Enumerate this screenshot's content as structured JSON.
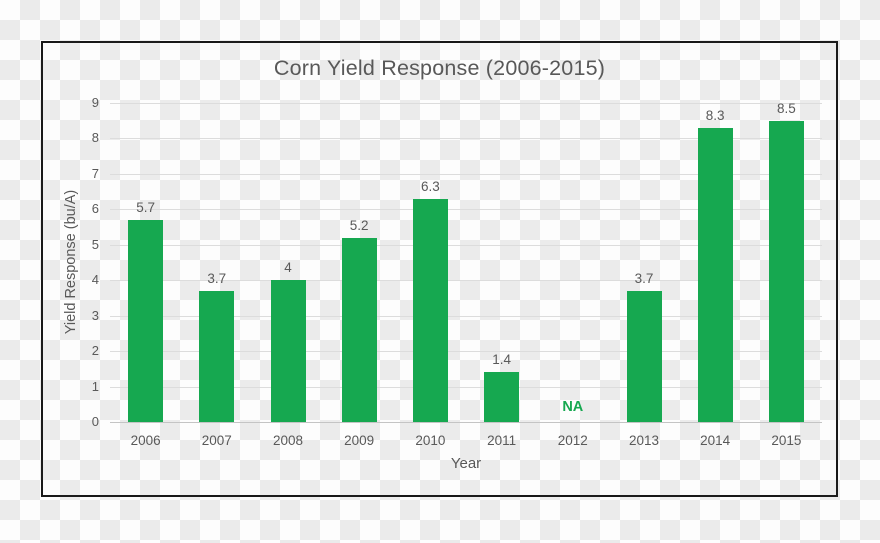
{
  "background": {
    "transparency_checker_light": "#fdfdfd",
    "transparency_checker_dark": "#ebebeb"
  },
  "frame": {
    "border_color": "#1a1a1a"
  },
  "chart_data": {
    "type": "bar",
    "title": "Corn Yield Response (2006-2015)",
    "xlabel": "Year",
    "ylabel": "Yield Response (bu/A)",
    "categories": [
      "2006",
      "2007",
      "2008",
      "2009",
      "2010",
      "2011",
      "2012",
      "2013",
      "2014",
      "2015"
    ],
    "values": [
      5.7,
      3.7,
      4,
      5.2,
      6.3,
      1.4,
      null,
      3.7,
      8.3,
      8.5
    ],
    "value_labels": [
      "5.7",
      "3.7",
      "4",
      "5.2",
      "6.3",
      "1.4",
      "NA",
      "3.7",
      "8.3",
      "8.5"
    ],
    "missing_value_label": "NA",
    "yticks": [
      "0",
      "1",
      "2",
      "3",
      "4",
      "5",
      "6",
      "7",
      "8",
      "9"
    ],
    "ylim": [
      0,
      9
    ],
    "grid": true,
    "legend": false,
    "bar_color": "#16a850",
    "na_label_color": "#16a850",
    "text_color": "#595959",
    "gridline_color": "#dcdcdc",
    "axis_line_color": "#c4c4c4"
  }
}
